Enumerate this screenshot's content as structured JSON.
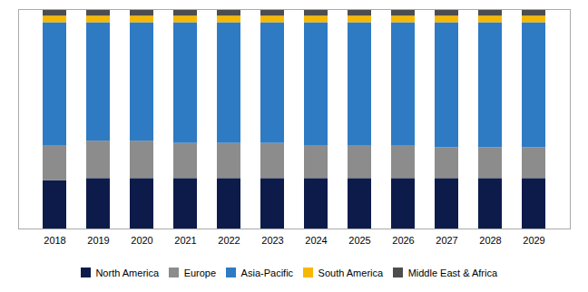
{
  "chart_data": {
    "type": "bar",
    "stacked": true,
    "categories": [
      "2018",
      "2019",
      "2020",
      "2021",
      "2022",
      "2023",
      "2024",
      "2025",
      "2026",
      "2027",
      "2028",
      "2029"
    ],
    "series": [
      {
        "name": "North America",
        "color": "#0d1b4b",
        "values": [
          22,
          23,
          23,
          23,
          23,
          23,
          23,
          23,
          23,
          23,
          23,
          23
        ]
      },
      {
        "name": "Europe",
        "color": "#8c8c8c",
        "values": [
          16,
          17,
          17,
          16,
          16,
          16,
          15,
          15,
          15,
          14,
          14,
          14
        ]
      },
      {
        "name": "Asia-Pacific",
        "color": "#2e7bc4",
        "values": [
          56,
          54,
          54,
          55,
          55,
          55,
          56,
          56,
          56,
          57,
          57,
          57
        ]
      },
      {
        "name": "South America",
        "color": "#f5b800",
        "values": [
          3,
          3,
          3,
          3,
          3,
          3,
          3,
          3,
          3,
          3,
          3,
          3
        ]
      },
      {
        "name": "Middle East & Africa",
        "color": "#4d4d4d",
        "values": [
          3,
          3,
          3,
          3,
          3,
          3,
          3,
          3,
          3,
          3,
          3,
          3
        ]
      }
    ],
    "ylim": [
      0,
      100
    ],
    "tick_labels": "x",
    "legend": "bottom",
    "grid": false
  }
}
